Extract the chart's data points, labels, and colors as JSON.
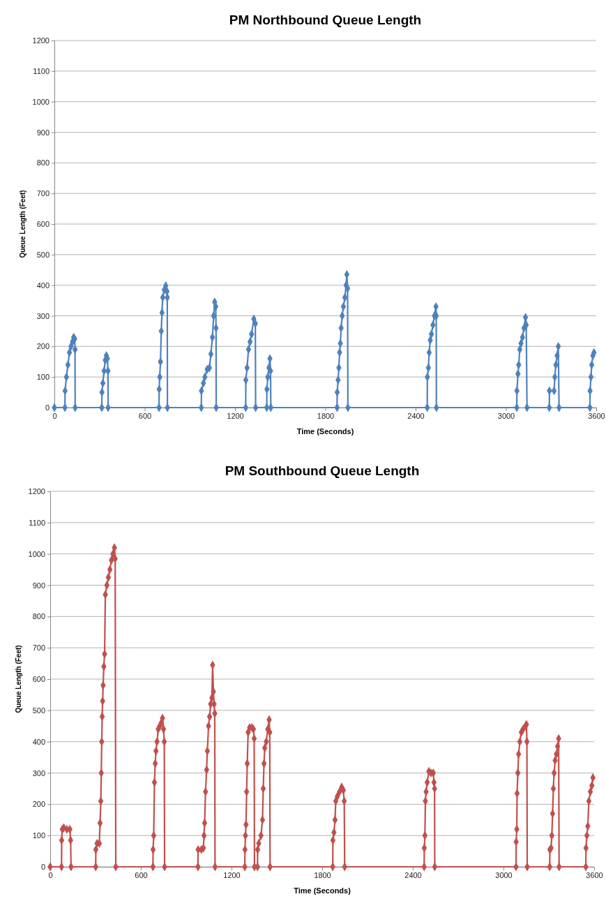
{
  "chart_data": [
    {
      "type": "line",
      "title": "PM Northbound Queue Length",
      "xlabel": "Time (Seconds)",
      "ylabel": "Queue Length (Feet)",
      "xlim": [
        0,
        3600
      ],
      "xticks": [
        0,
        600,
        1200,
        1800,
        2400,
        3000,
        3600
      ],
      "ylim": [
        0,
        1200
      ],
      "yticks": [
        0,
        100,
        200,
        300,
        400,
        500,
        600,
        700,
        800,
        900,
        1000,
        1100,
        1200
      ],
      "grid": "y",
      "marker": "diamond",
      "line_style": "solid",
      "series": [
        {
          "color": "#4f81bd",
          "x": [
            0,
            70,
            71,
            80,
            90,
            100,
            110,
            120,
            128,
            135,
            137,
            138,
            315,
            316,
            322,
            330,
            338,
            345,
            352,
            356,
            357,
            695,
            696,
            700,
            705,
            710,
            715,
            720,
            730,
            740,
            748,
            750,
            751,
            976,
            977,
            990,
            1000,
            1015,
            1030,
            1040,
            1050,
            1058,
            1065,
            1072,
            1074,
            1075,
            1271,
            1272,
            1280,
            1290,
            1300,
            1310,
            1325,
            1335,
            1337,
            1411,
            1412,
            1418,
            1425,
            1432,
            1436,
            1438,
            1878,
            1879,
            1885,
            1890,
            1895,
            1900,
            1905,
            1912,
            1920,
            1930,
            1938,
            1943,
            1948,
            1950,
            2477,
            2478,
            2485,
            2490,
            2497,
            2505,
            2515,
            2525,
            2535,
            2537,
            2538,
            3072,
            3073,
            3080,
            3085,
            3092,
            3100,
            3110,
            3120,
            3130,
            3135,
            3140,
            3288,
            3289,
            3320,
            3325,
            3332,
            3340,
            3348,
            3353,
            3558,
            3559,
            3565,
            3570,
            3578,
            3585
          ],
          "values": [
            0,
            0,
            55,
            100,
            140,
            180,
            200,
            215,
            230,
            225,
            190,
            0,
            0,
            50,
            80,
            120,
            155,
            170,
            160,
            120,
            0,
            0,
            60,
            100,
            150,
            250,
            310,
            360,
            385,
            398,
            380,
            360,
            0,
            0,
            55,
            80,
            100,
            125,
            130,
            175,
            230,
            300,
            345,
            330,
            260,
            0,
            0,
            90,
            130,
            190,
            215,
            240,
            290,
            275,
            0,
            0,
            60,
            100,
            130,
            160,
            120,
            0,
            0,
            50,
            90,
            130,
            180,
            210,
            260,
            300,
            330,
            360,
            400,
            435,
            390,
            0,
            0,
            100,
            130,
            180,
            220,
            240,
            270,
            300,
            330,
            300,
            0,
            0,
            55,
            110,
            140,
            190,
            210,
            230,
            260,
            295,
            270,
            0,
            0,
            55,
            55,
            100,
            140,
            170,
            200,
            0,
            0,
            55,
            100,
            140,
            170,
            180
          ]
        }
      ]
    },
    {
      "type": "line",
      "title": "PM Southbound Queue Length",
      "xlabel": "Time (Seconds)",
      "ylabel": "Queue Length (Feet)",
      "xlim": [
        0,
        3600
      ],
      "xticks": [
        0,
        600,
        1200,
        1800,
        2400,
        3000,
        3600
      ],
      "ylim": [
        0,
        1200
      ],
      "yticks": [
        0,
        100,
        200,
        300,
        400,
        500,
        600,
        700,
        800,
        900,
        1000,
        1100,
        1200
      ],
      "grid": "y",
      "marker": "diamond",
      "line_style": "solid",
      "series": [
        {
          "color": "#c0504d",
          "x": [
            0,
            75,
            76,
            80,
            90,
            110,
            130,
            135,
            138,
            301,
            302,
            310,
            325,
            330,
            335,
            338,
            341,
            344,
            347,
            350,
            355,
            360,
            365,
            375,
            385,
            395,
            405,
            415,
            425,
            430,
            434,
            680,
            681,
            685,
            690,
            695,
            700,
            707,
            715,
            725,
            735,
            743,
            750,
            755,
            757,
            978,
            979,
            1000,
            1014,
            1018,
            1022,
            1028,
            1035,
            1040,
            1048,
            1055,
            1062,
            1070,
            1075,
            1080,
            1085,
            1089,
            1091,
            1288,
            1289,
            1292,
            1296,
            1300,
            1304,
            1310,
            1320,
            1335,
            1345,
            1350,
            1352,
            1372,
            1373,
            1380,
            1395,
            1405,
            1410,
            1415,
            1420,
            1430,
            1440,
            1449,
            1453,
            1455,
            1870,
            1871,
            1878,
            1885,
            1890,
            1900,
            1915,
            1929,
            1940,
            1946,
            1949,
            2475,
            2476,
            2480,
            2483,
            2488,
            2495,
            2506,
            2520,
            2535,
            2540,
            2544,
            2545,
            3083,
            3084,
            3088,
            3090,
            3095,
            3100,
            3108,
            3118,
            3130,
            3145,
            3152,
            3155,
            3157,
            3306,
            3307,
            3315,
            3320,
            3325,
            3330,
            3335,
            3342,
            3350,
            3358,
            3365,
            3368,
            3545,
            3546,
            3552,
            3558,
            3565,
            3575,
            3585,
            3592
          ],
          "values": [
            0,
            0,
            85,
            120,
            125,
            120,
            120,
            85,
            0,
            0,
            55,
            75,
            75,
            140,
            210,
            300,
            400,
            480,
            530,
            580,
            640,
            680,
            870,
            900,
            925,
            950,
            980,
            1000,
            1020,
            985,
            0,
            0,
            55,
            100,
            270,
            330,
            370,
            400,
            440,
            450,
            460,
            475,
            440,
            400,
            0,
            0,
            55,
            55,
            60,
            100,
            140,
            240,
            310,
            370,
            450,
            480,
            520,
            540,
            645,
            560,
            520,
            490,
            0,
            0,
            55,
            100,
            135,
            240,
            330,
            430,
            445,
            445,
            440,
            410,
            0,
            0,
            55,
            75,
            100,
            150,
            250,
            330,
            380,
            400,
            440,
            470,
            430,
            0,
            0,
            85,
            110,
            150,
            210,
            225,
            240,
            255,
            245,
            210,
            0,
            0,
            60,
            100,
            210,
            240,
            270,
            305,
            300,
            300,
            270,
            250,
            0,
            0,
            80,
            120,
            235,
            300,
            360,
            400,
            430,
            440,
            450,
            455,
            400,
            0,
            0,
            55,
            60,
            100,
            170,
            250,
            300,
            340,
            360,
            385,
            410,
            0,
            0,
            60,
            100,
            130,
            210,
            240,
            260,
            285
          ]
        }
      ]
    }
  ]
}
